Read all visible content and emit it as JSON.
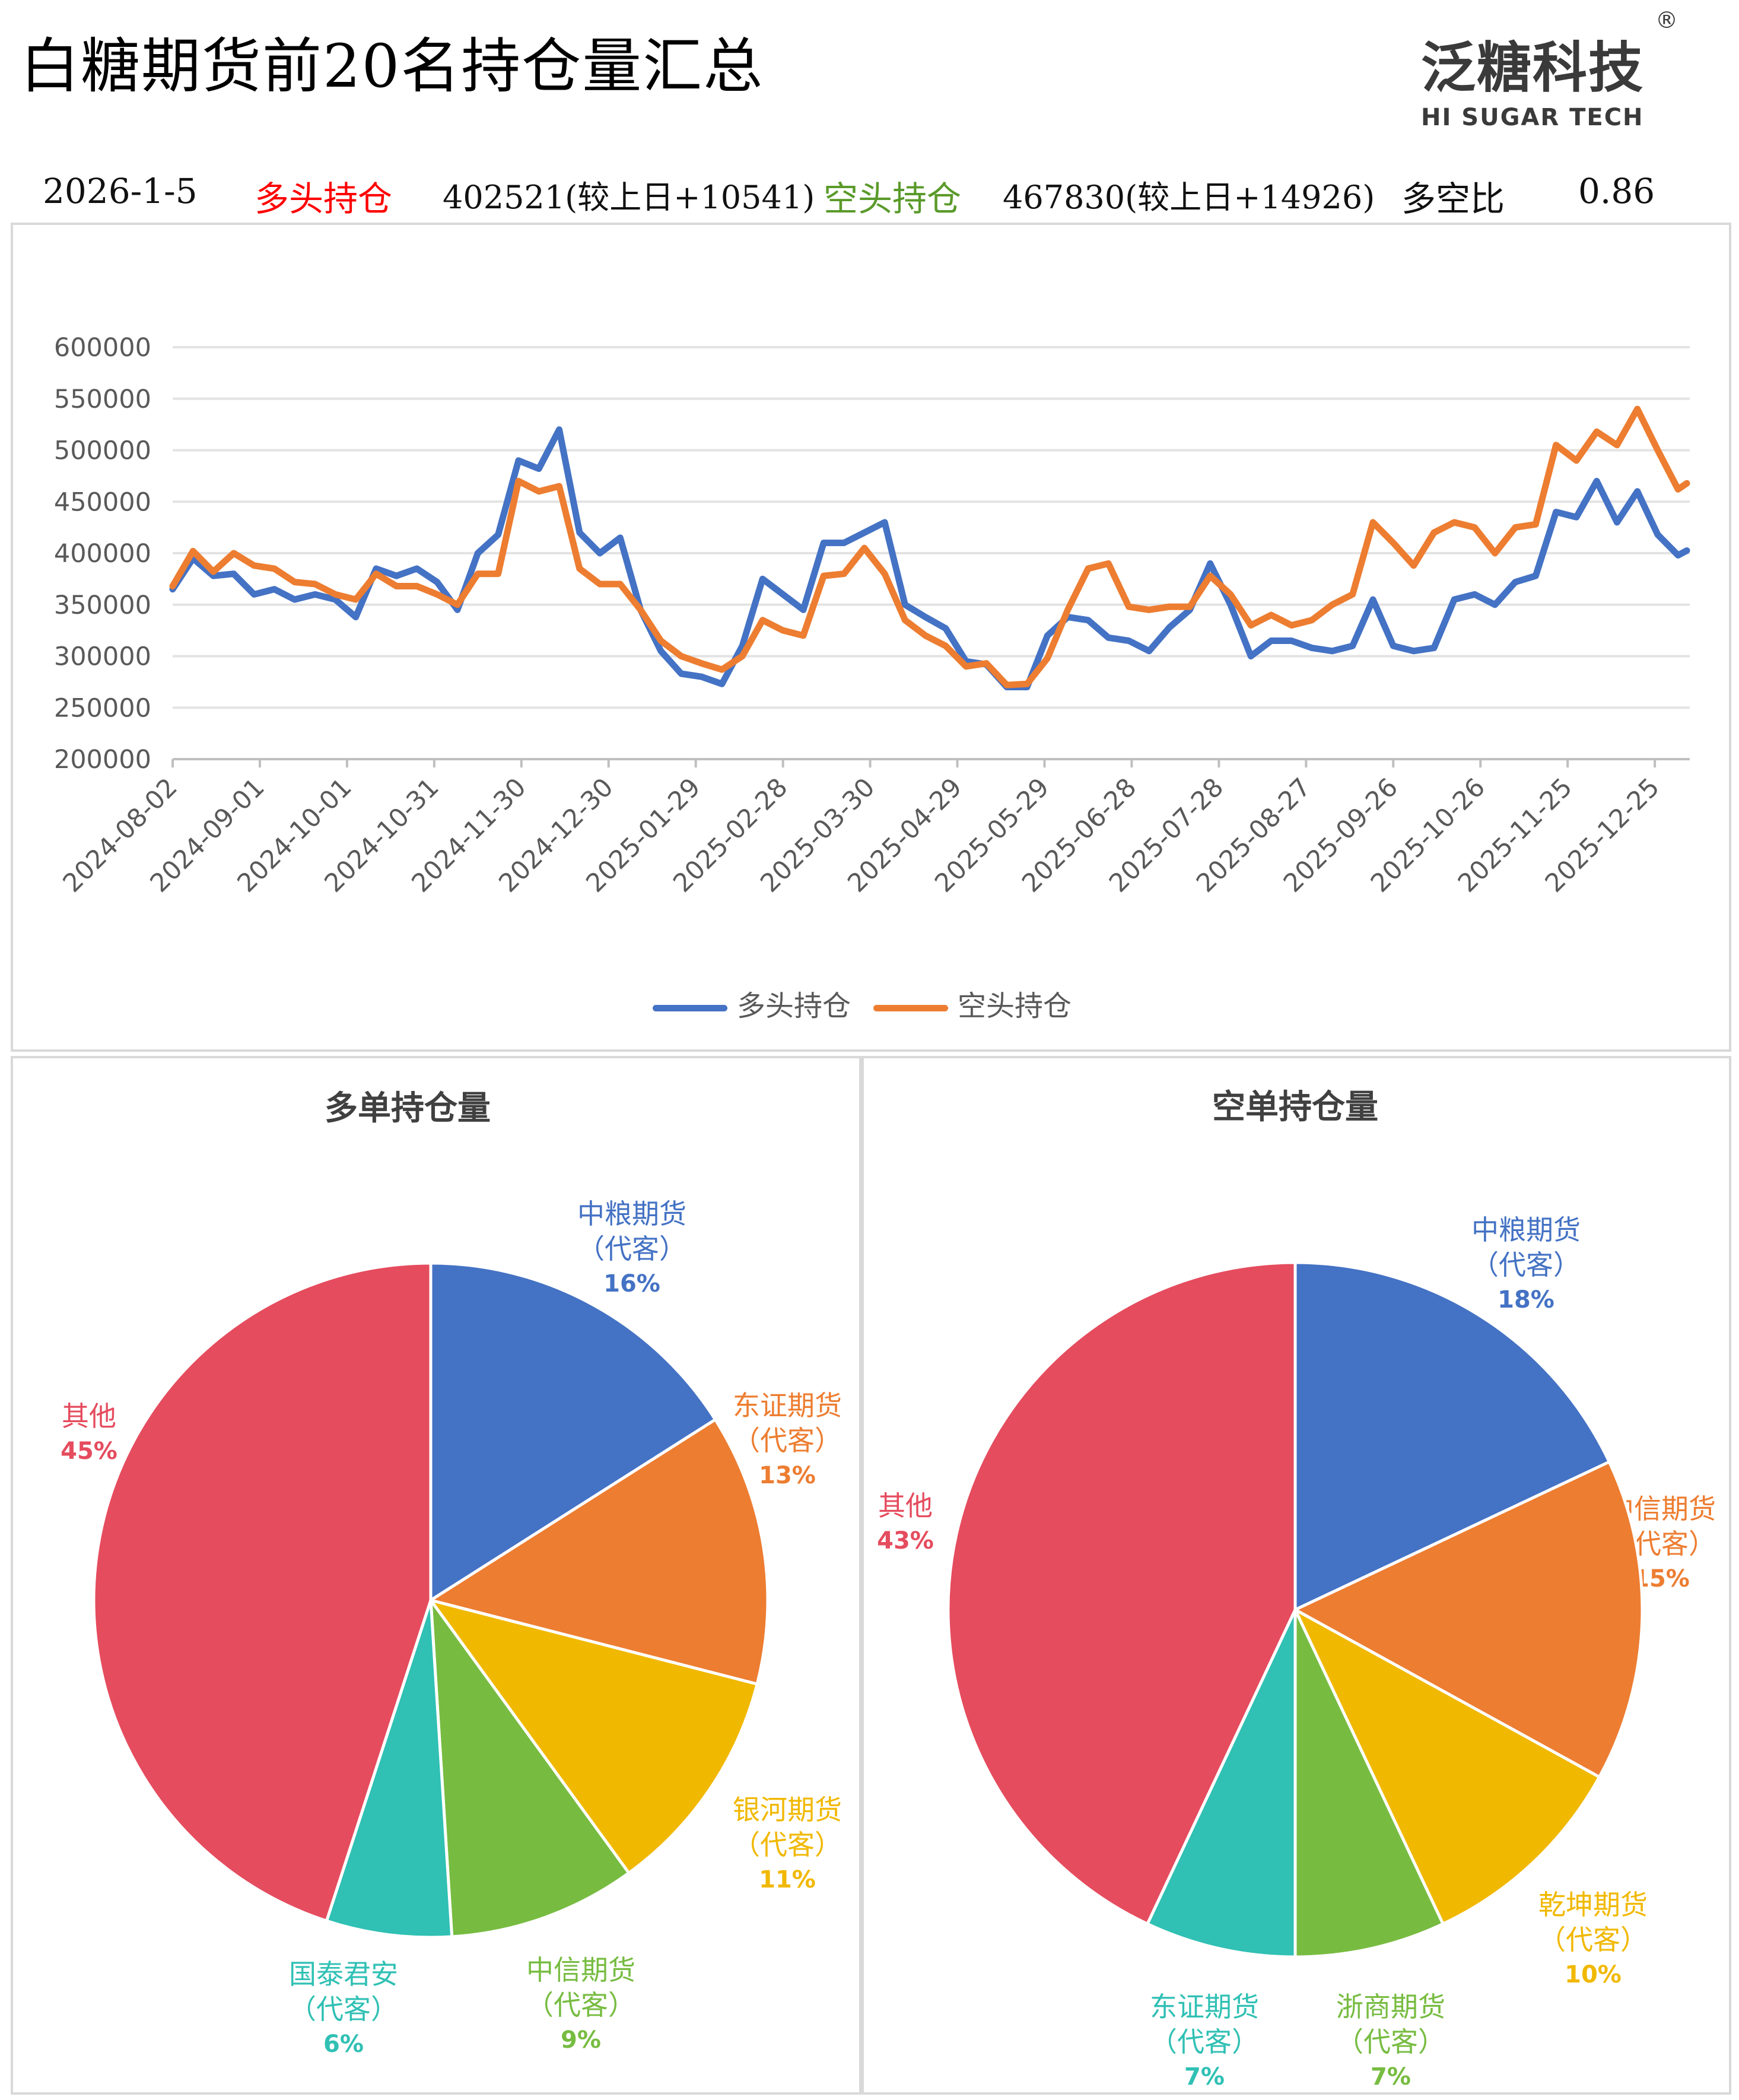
{
  "header": {
    "title": "白糖期货前20名持仓量汇总",
    "logo_cn": "泛糖科技",
    "logo_en": "HI SUGAR TECH",
    "logo_reg": "®"
  },
  "info": {
    "date": "2026-1-5",
    "long_label": "多头持仓",
    "long_value": "402521(较上日+10541)",
    "short_label": "空头持仓",
    "short_value": "467830(较上日+14926)",
    "ratio_label": "多空比",
    "ratio_value": "0.86",
    "long_color": "#FF0000",
    "short_color": "#5A9A2A"
  },
  "chart_data": [
    {
      "type": "line",
      "ylim": [
        200000,
        600000
      ],
      "y_ticks": [
        "200000",
        "250000",
        "300000",
        "350000",
        "400000",
        "450000",
        "500000",
        "550000",
        "600000"
      ],
      "x_range": [
        "2024-08-02",
        "2026-01-05"
      ],
      "x_ticks": [
        "2024-08-02",
        "2024-09-01",
        "2024-10-01",
        "2024-10-31",
        "2024-11-30",
        "2024-12-30",
        "2025-01-29",
        "2025-02-28",
        "2025-03-30",
        "2025-04-29",
        "2025-05-29",
        "2025-06-28",
        "2025-07-28",
        "2025-08-27",
        "2025-09-26",
        "2025-10-26",
        "2025-11-25",
        "2025-12-25"
      ],
      "grid": true,
      "legend_position": "bottom",
      "x": [
        "2024-08-02",
        "2024-08-09",
        "2024-08-16",
        "2024-08-23",
        "2024-08-30",
        "2024-09-06",
        "2024-09-13",
        "2024-09-20",
        "2024-09-27",
        "2024-10-04",
        "2024-10-11",
        "2024-10-18",
        "2024-10-25",
        "2024-11-01",
        "2024-11-08",
        "2024-11-15",
        "2024-11-22",
        "2024-11-29",
        "2024-12-06",
        "2024-12-13",
        "2024-12-20",
        "2024-12-27",
        "2025-01-03",
        "2025-01-10",
        "2025-01-17",
        "2025-01-24",
        "2025-01-31",
        "2025-02-07",
        "2025-02-14",
        "2025-02-21",
        "2025-02-28",
        "2025-03-07",
        "2025-03-14",
        "2025-03-21",
        "2025-03-28",
        "2025-04-04",
        "2025-04-11",
        "2025-04-18",
        "2025-04-25",
        "2025-05-02",
        "2025-05-09",
        "2025-05-16",
        "2025-05-23",
        "2025-05-30",
        "2025-06-06",
        "2025-06-13",
        "2025-06-20",
        "2025-06-27",
        "2025-07-04",
        "2025-07-11",
        "2025-07-18",
        "2025-07-25",
        "2025-08-01",
        "2025-08-08",
        "2025-08-15",
        "2025-08-22",
        "2025-08-29",
        "2025-09-05",
        "2025-09-12",
        "2025-09-19",
        "2025-09-26",
        "2025-10-03",
        "2025-10-10",
        "2025-10-17",
        "2025-10-24",
        "2025-10-31",
        "2025-11-07",
        "2025-11-14",
        "2025-11-21",
        "2025-11-28",
        "2025-12-05",
        "2025-12-12",
        "2025-12-19",
        "2025-12-26",
        "2026-01-02",
        "2026-01-05"
      ],
      "series": [
        {
          "name": "多头持仓",
          "color": "#4472C4",
          "values": [
            365000,
            395000,
            378000,
            380000,
            360000,
            365000,
            355000,
            360000,
            355000,
            338000,
            385000,
            378000,
            385000,
            372000,
            345000,
            400000,
            418000,
            490000,
            482000,
            520000,
            420000,
            400000,
            415000,
            345000,
            305000,
            283000,
            280000,
            273000,
            310000,
            375000,
            360000,
            345000,
            410000,
            410000,
            420000,
            430000,
            350000,
            338000,
            327000,
            295000,
            292000,
            270000,
            270000,
            320000,
            338000,
            335000,
            318000,
            315000,
            305000,
            328000,
            345000,
            390000,
            350000,
            300000,
            315000,
            315000,
            308000,
            305000,
            310000,
            355000,
            310000,
            305000,
            308000,
            355000,
            360000,
            350000,
            372000,
            378000,
            440000,
            435000,
            470000,
            430000,
            460000,
            418000,
            398000,
            402521
          ]
        },
        {
          "name": "空头持仓",
          "color": "#ED7D31",
          "values": [
            368000,
            402000,
            382000,
            400000,
            388000,
            385000,
            372000,
            370000,
            360000,
            355000,
            380000,
            368000,
            368000,
            360000,
            350000,
            380000,
            380000,
            470000,
            460000,
            465000,
            385000,
            370000,
            370000,
            345000,
            315000,
            300000,
            293000,
            287000,
            300000,
            335000,
            325000,
            320000,
            378000,
            380000,
            405000,
            380000,
            335000,
            320000,
            310000,
            290000,
            293000,
            272000,
            273000,
            298000,
            345000,
            385000,
            390000,
            348000,
            345000,
            348000,
            348000,
            378000,
            360000,
            330000,
            340000,
            330000,
            335000,
            350000,
            360000,
            430000,
            410000,
            388000,
            420000,
            430000,
            425000,
            400000,
            425000,
            428000,
            505000,
            490000,
            518000,
            505000,
            540000,
            500000,
            462000,
            467830
          ]
        }
      ]
    },
    {
      "type": "pie",
      "title": "多单持仓量",
      "slices": [
        {
          "label": "中粮期货",
          "sub": "（代客）",
          "pct": "16%",
          "value": 16,
          "color": "#4472C4"
        },
        {
          "label": "东证期货",
          "sub": "（代客）",
          "pct": "13%",
          "value": 13,
          "color": "#ED7D31"
        },
        {
          "label": "银河期货",
          "sub": "（代客）",
          "pct": "11%",
          "value": 11,
          "color": "#F1B800"
        },
        {
          "label": "中信期货",
          "sub": "（代客）",
          "pct": "9%",
          "value": 9,
          "color": "#77BC41"
        },
        {
          "label": "国泰君安",
          "sub": "（代客）",
          "pct": "6%",
          "value": 6,
          "color": "#30C0B4"
        },
        {
          "label": "其他",
          "sub": "",
          "pct": "45%",
          "value": 45,
          "color": "#E54C5E"
        }
      ]
    },
    {
      "type": "pie",
      "title": "空单持仓量",
      "slices": [
        {
          "label": "中粮期货",
          "sub": "（代客）",
          "pct": "18%",
          "value": 18,
          "color": "#4472C4"
        },
        {
          "label": "中信期货",
          "sub": "（代客）",
          "pct": "15%",
          "value": 15,
          "color": "#ED7D31"
        },
        {
          "label": "乾坤期货",
          "sub": "（代客）",
          "pct": "10%",
          "value": 10,
          "color": "#F1B800"
        },
        {
          "label": "浙商期货",
          "sub": "（代客）",
          "pct": "7%",
          "value": 7,
          "color": "#77BC41"
        },
        {
          "label": "东证期货",
          "sub": "（代客）",
          "pct": "7%",
          "value": 7,
          "color": "#30C0B4"
        },
        {
          "label": "其他",
          "sub": "",
          "pct": "43%",
          "value": 43,
          "color": "#E54C5E"
        }
      ]
    }
  ]
}
